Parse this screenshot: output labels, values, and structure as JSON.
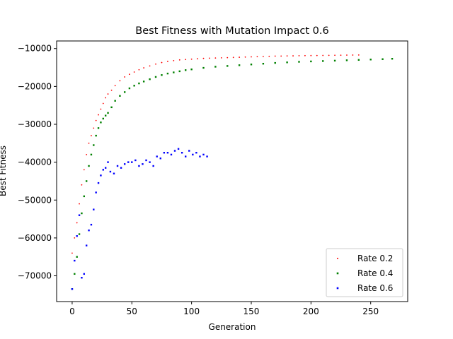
{
  "chart_data": {
    "type": "scatter",
    "title": "Best Fitness with Mutation Impact 0.6",
    "xlabel": "Generation",
    "ylabel": "Best Fitness",
    "xlim": [
      -13,
      281
    ],
    "ylim": [
      -76800,
      -8000
    ],
    "xticks": [
      0,
      50,
      100,
      150,
      200,
      250
    ],
    "yticks": [
      -70000,
      -60000,
      -50000,
      -40000,
      -30000,
      -20000,
      -10000
    ],
    "xtick_labels": [
      "0",
      "50",
      "100",
      "150",
      "200",
      "250"
    ],
    "ytick_labels": [
      "−70000",
      "−60000",
      "−50000",
      "−40000",
      "−30000",
      "−20000",
      "−10000"
    ],
    "grid": false,
    "legend": "lower-right",
    "series": [
      {
        "name": "Rate 0.2",
        "color": "#ff0000",
        "marker": "dot",
        "x": [
          0,
          2,
          4,
          6,
          8,
          10,
          12,
          14,
          16,
          18,
          20,
          22,
          24,
          26,
          28,
          30,
          33,
          36,
          40,
          44,
          48,
          52,
          56,
          60,
          65,
          70,
          75,
          80,
          85,
          90,
          95,
          100,
          105,
          110,
          115,
          120,
          125,
          130,
          135,
          140,
          145,
          150,
          155,
          160,
          165,
          170,
          175,
          180,
          185,
          190,
          195,
          200,
          205,
          210,
          215,
          220,
          225,
          230,
          235,
          240
        ],
        "y": [
          -64000,
          -60000,
          -56000,
          -51000,
          -46000,
          -42000,
          -38000,
          -35000,
          -33000,
          -31000,
          -29000,
          -27500,
          -26000,
          -24500,
          -23000,
          -22000,
          -21000,
          -19800,
          -18500,
          -17500,
          -16800,
          -16200,
          -15600,
          -15100,
          -14600,
          -14100,
          -13700,
          -13400,
          -13200,
          -13000,
          -12900,
          -12800,
          -12700,
          -12600,
          -12550,
          -12500,
          -12450,
          -12400,
          -12350,
          -12300,
          -12250,
          -12200,
          -12150,
          -12100,
          -12050,
          -12000,
          -11980,
          -11950,
          -11930,
          -11900,
          -11880,
          -11860,
          -11840,
          -11820,
          -11800,
          -11780,
          -11760,
          -11740,
          -11720,
          -11700
        ]
      },
      {
        "name": "Rate 0.4",
        "color": "#008000",
        "marker": "square",
        "x": [
          0,
          2,
          4,
          6,
          8,
          10,
          12,
          14,
          16,
          18,
          20,
          22,
          24,
          26,
          28,
          30,
          33,
          36,
          40,
          44,
          48,
          52,
          56,
          60,
          65,
          70,
          75,
          80,
          85,
          90,
          95,
          100,
          110,
          120,
          130,
          140,
          150,
          160,
          170,
          180,
          190,
          200,
          210,
          220,
          230,
          240,
          250,
          260,
          268
        ],
        "y": [
          -73500,
          -69500,
          -65000,
          -59000,
          -53500,
          -49000,
          -45000,
          -41000,
          -38000,
          -35500,
          -33000,
          -31000,
          -29500,
          -28500,
          -27700,
          -27000,
          -25500,
          -23800,
          -22500,
          -21500,
          -20500,
          -19800,
          -19200,
          -18700,
          -18100,
          -17500,
          -17000,
          -16600,
          -16300,
          -16000,
          -15700,
          -15500,
          -15100,
          -14800,
          -14600,
          -14400,
          -14200,
          -14000,
          -13800,
          -13650,
          -13500,
          -13400,
          -13300,
          -13200,
          -13100,
          -13000,
          -12900,
          -12800,
          -12700
        ]
      },
      {
        "name": "Rate 0.6",
        "color": "#0000ff",
        "marker": "square",
        "x": [
          0,
          2,
          4,
          6,
          8,
          10,
          12,
          14,
          16,
          18,
          20,
          22,
          24,
          26,
          28,
          30,
          32,
          35,
          38,
          41,
          44,
          47,
          50,
          53,
          56,
          59,
          62,
          65,
          68,
          71,
          74,
          77,
          80,
          83,
          86,
          89,
          92,
          95,
          98,
          101,
          104,
          107,
          110,
          113
        ],
        "y": [
          -73500,
          -66000,
          -59500,
          -54000,
          -70500,
          -69500,
          -62000,
          -58000,
          -56500,
          -52500,
          -48000,
          -45500,
          -43500,
          -42000,
          -41500,
          -40000,
          -42500,
          -43000,
          -41000,
          -41500,
          -40500,
          -40000,
          -40000,
          -39500,
          -41000,
          -40500,
          -39500,
          -40000,
          -41000,
          -38500,
          -39000,
          -37500,
          -37500,
          -38000,
          -37000,
          -36500,
          -37500,
          -38500,
          -37000,
          -38000,
          -37500,
          -38500,
          -38000,
          -38500
        ]
      }
    ]
  }
}
